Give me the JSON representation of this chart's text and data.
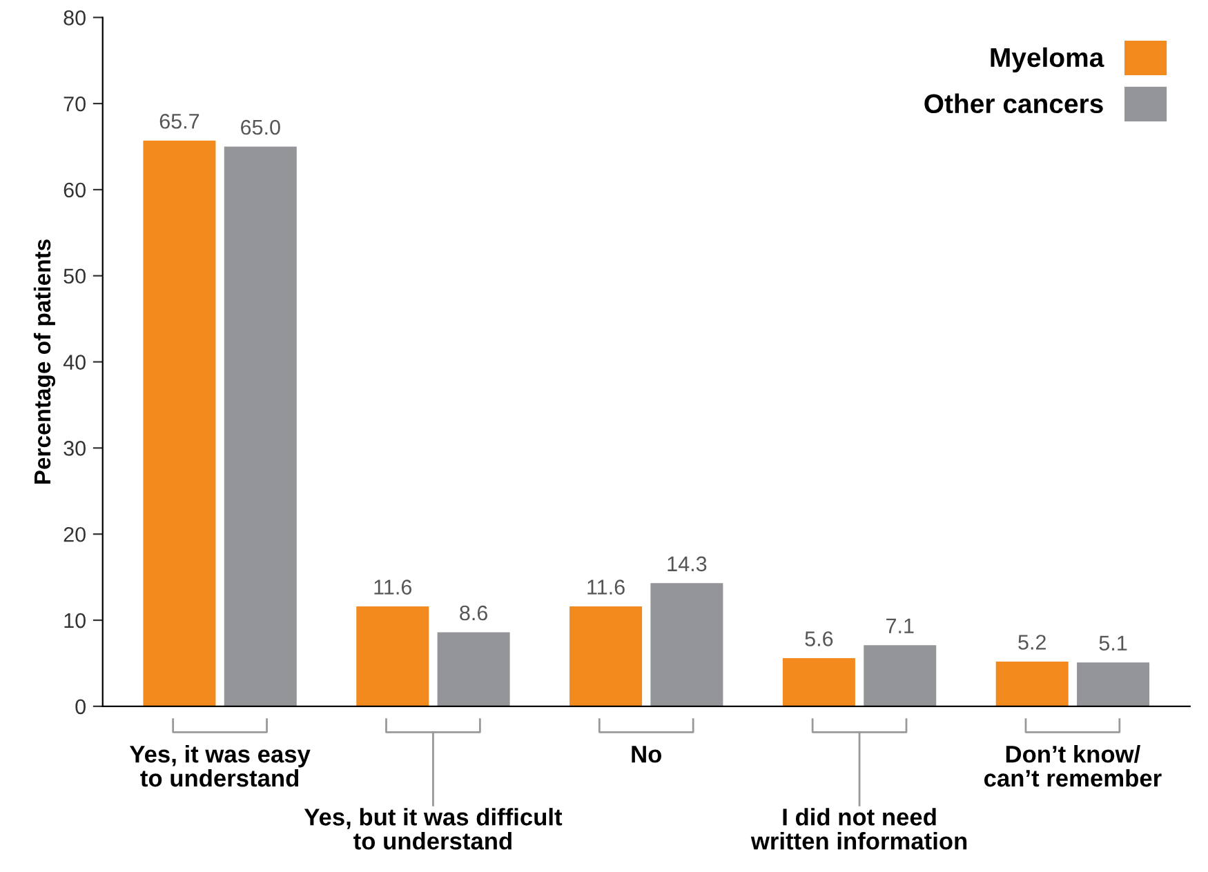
{
  "chart_data": {
    "type": "bar",
    "ylabel": "Percentage of patients",
    "categories": [
      "Yes, it was easy\nto understand",
      "Yes, but it was difficult\nto understand",
      "No",
      "I did not need\nwritten information",
      "Don’t know/\ncan’t remember"
    ],
    "series": [
      {
        "name": "Myeloma",
        "color": "#f28a1e",
        "values": [
          65.7,
          11.6,
          11.6,
          5.6,
          5.2
        ],
        "value_labels": [
          "65.7",
          "11.6",
          "11.6",
          "5.6",
          "5.2"
        ]
      },
      {
        "name": "Other cancers",
        "color": "#939598",
        "values": [
          65.0,
          8.6,
          14.3,
          7.1,
          5.1
        ],
        "value_labels": [
          "65.0",
          "8.6",
          "14.3",
          "7.1",
          "5.1"
        ]
      }
    ],
    "ylim": [
      0,
      80
    ],
    "yticks": [
      0,
      10,
      20,
      30,
      40,
      50,
      60,
      70,
      80
    ],
    "grid": false,
    "legend": "top right"
  }
}
